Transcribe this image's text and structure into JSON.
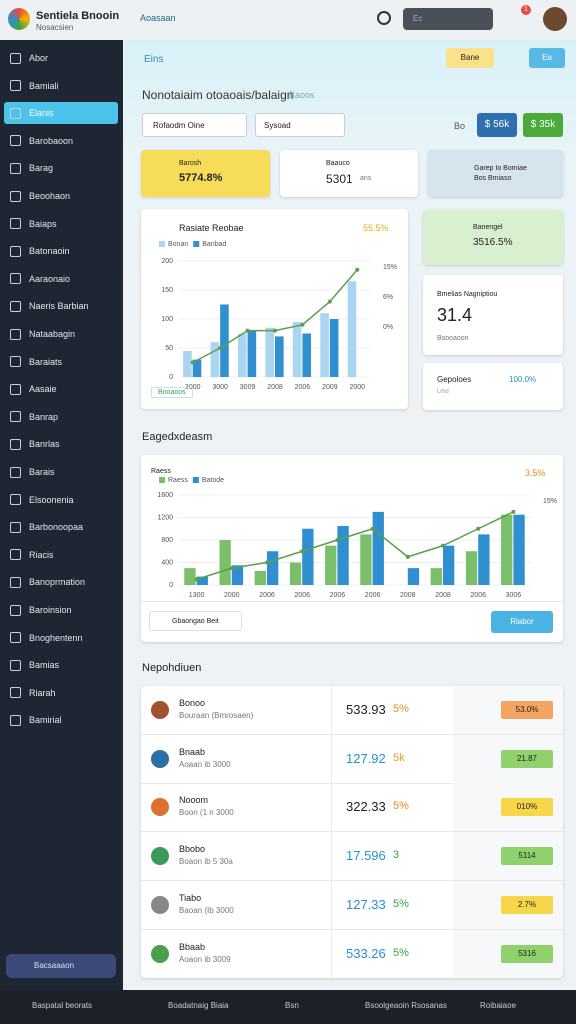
{
  "header": {
    "app_title": "Sentiela Bnooin",
    "app_subtitle": "Nosacsien",
    "breadcrumb": "Aoasaan",
    "search_placeholder": "Ec",
    "notification_count": "1"
  },
  "sidebar": {
    "items": [
      "Abor",
      "Bamiali",
      "Elanis",
      "Barobaoon",
      "Barag",
      "Beoohaon",
      "Baiaps",
      "Batonaoin",
      "Aaraonaio",
      "Naeris Barbian",
      "Nataabagin",
      "Baraiats",
      "Aasaie",
      "Banrap",
      "Banrlas",
      "Barais",
      "Elsoonenia",
      "Barbonoopaa",
      "Riacis",
      "Banoprmation",
      "Baroinsion",
      "Bnoghentenn",
      "Bamias",
      "Riarah",
      "Bamirial"
    ],
    "active": 2,
    "footer_button": "Bacsaaaon"
  },
  "page": {
    "tab": "Eins",
    "top_buttons": [
      "Bane",
      "Ea"
    ],
    "title": "Nonotaiaim otoaoais/balaign",
    "title_note": "Baoos",
    "filters": [
      "Rofaodm Oine",
      "Sysoad"
    ],
    "badges_note": "Bo",
    "badges": [
      "$ 56k",
      "$ 35k"
    ]
  },
  "stat_cards": [
    {
      "label": "Barosh",
      "value": "5774.8%"
    },
    {
      "label": "Baauco",
      "value": "5301",
      "note": "ans"
    },
    {
      "label": "Garep Io Bomiae",
      "value": "Bos Bmiaso"
    }
  ],
  "side_cards": [
    {
      "label": "Banengel",
      "value": "3516.5%"
    },
    {
      "label": "Bmelias Nagniptiou",
      "value": "31.4",
      "note": "Bsooaoon"
    },
    {
      "label": "Gepoloes",
      "value": "100.0%",
      "note": "Lmd"
    }
  ],
  "charts": [
    {
      "type": "bar",
      "title": "Rasiate Reobae",
      "highlight": "55.5%",
      "categories": [
        "3000",
        "3000",
        "3009",
        "2008",
        "2006",
        "2009",
        "2000"
      ],
      "ylim": [
        0,
        200
      ],
      "yticks": [
        0,
        50,
        100,
        150,
        200
      ],
      "grid": true,
      "series": [
        {
          "name": "Bonan",
          "type": "bar",
          "color": "#a9d5f0",
          "values": [
            45,
            60,
            75,
            85,
            95,
            110,
            165
          ]
        },
        {
          "name": "Banbad",
          "type": "bar",
          "color": "#2f8fd0",
          "values": [
            30,
            125,
            80,
            70,
            75,
            100,
            null
          ]
        },
        {
          "type": "line",
          "color": "#5aa04a",
          "values": [
            25,
            50,
            80,
            80,
            90,
            130,
            185
          ]
        }
      ],
      "side_labels": [
        "15%",
        "6%",
        "0%"
      ],
      "footer": "Bnoaoos"
    },
    {
      "type": "bar",
      "title": "Raess",
      "highlight": "3.5%",
      "categories": [
        "1300",
        "2000",
        "2006",
        "2006",
        "2006",
        "2006",
        "2008",
        "2008",
        "2006",
        "3006"
      ],
      "ylim": [
        0,
        1600
      ],
      "yticks": [
        0,
        400,
        800,
        1200,
        1600
      ],
      "grid": true,
      "series": [
        {
          "name": "Raess",
          "type": "bar",
          "color": "#7cbf6a",
          "values": [
            300,
            800,
            250,
            400,
            700,
            900,
            null,
            300,
            600,
            1250
          ]
        },
        {
          "name": "Batode",
          "type": "bar",
          "color": "#2f8fd0",
          "values": [
            150,
            350,
            600,
            1000,
            1050,
            1300,
            300,
            700,
            900,
            1250
          ]
        },
        {
          "type": "line",
          "color": "#5aa04a",
          "values": [
            100,
            300,
            400,
            600,
            800,
            1000,
            500,
            700,
            1000,
            1300
          ]
        }
      ],
      "side_labels": [
        "15%"
      ]
    }
  ],
  "sections": {
    "chart_section": "Eagedxdeasm",
    "search": "Gbaongao Beit",
    "search_button": "Riabor",
    "table_section": "Nepohdiuen"
  },
  "table": {
    "rows": [
      {
        "name": "Bonoo",
        "sub": "Bouraan (Bmrosaen)",
        "value": "533.93",
        "pct": "5%",
        "badge": "53.0%",
        "icon_color": "#a0522d",
        "value_color": "#222",
        "pct_color": "#f08a24",
        "badge_color": "#f4a460"
      },
      {
        "name": "Bnaab",
        "sub": "Aoaan ib 3000",
        "value": "127.92",
        "pct": "5k",
        "badge": "21.87",
        "icon_color": "#2f6fa8",
        "value_color": "#2a8fd0",
        "pct_color": "#e0a020",
        "badge_color": "#8fd16a"
      },
      {
        "name": "Nooom",
        "sub": "Boon (1 n 3000",
        "value": "322.33",
        "pct": "5%",
        "badge": "010%",
        "icon_color": "#e07030",
        "value_color": "#222",
        "pct_color": "#f08a24",
        "badge_color": "#f7d64a"
      },
      {
        "name": "Bbobo",
        "sub": "Boaon ib 5 30a",
        "value": "17.596",
        "pct": "3",
        "badge": "5114",
        "icon_color": "#3a9a5a",
        "value_color": "#2a8fd0",
        "pct_color": "#3aa04a",
        "badge_color": "#8fd16a"
      },
      {
        "name": "Tiabo",
        "sub": "Baoan (Ib 3000",
        "value": "127.33",
        "pct": "5%",
        "badge": "2.7%",
        "icon_color": "#888",
        "value_color": "#2a8fd0",
        "pct_color": "#3aa04a",
        "badge_color": "#f7d64a"
      },
      {
        "name": "Bbaab",
        "sub": "Aoaon ib 3009",
        "value": "533.26",
        "pct": "5%",
        "badge": "5316",
        "icon_color": "#4aa04a",
        "value_color": "#2a8fd0",
        "pct_color": "#3aa04a",
        "badge_color": "#8fd16a"
      }
    ]
  },
  "footer": {
    "items": [
      "Baspatal beorats",
      "Boadatnaig Biaia",
      "Bsn",
      "Bsoolgeaoin Rsosanas",
      "Roibaiaoe"
    ]
  }
}
